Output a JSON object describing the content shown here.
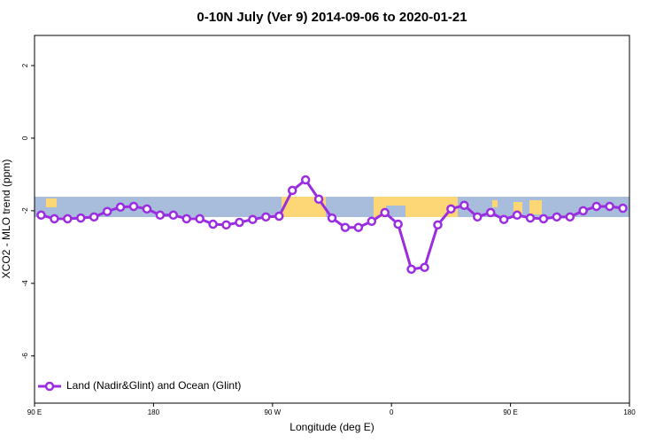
{
  "chart_data": {
    "type": "line",
    "title": "0-10N July (Ver 9)   2014-09-06 to 2020-01-21",
    "xlabel": "Longitude (deg E)",
    "ylabel": "XCO2 - MLO trend (ppm)",
    "x": [
      95,
      105,
      115,
      125,
      135,
      145,
      155,
      165,
      175,
      185,
      195,
      205,
      215,
      225,
      235,
      245,
      255,
      265,
      275,
      285,
      295,
      305,
      315,
      325,
      335,
      345,
      355,
      365,
      375,
      385,
      395,
      405,
      415,
      425,
      435,
      445,
      455,
      465,
      475,
      485,
      495,
      505,
      515,
      525,
      535
    ],
    "series": [
      {
        "name": "Land (Nadir&Glint) and Ocean (Glint)",
        "color": "#9b2de0",
        "values": [
          -2.12,
          -2.22,
          -2.22,
          -2.2,
          -2.17,
          -2.02,
          -1.9,
          -1.88,
          -1.95,
          -2.12,
          -2.12,
          -2.22,
          -2.22,
          -2.37,
          -2.39,
          -2.32,
          -2.24,
          -2.17,
          -2.15,
          -1.44,
          -1.15,
          -1.68,
          -2.2,
          -2.46,
          -2.46,
          -2.29,
          -2.05,
          -2.37,
          -3.61,
          -3.56,
          -2.39,
          -1.95,
          -1.85,
          -2.17,
          -2.05,
          -2.24,
          -2.12,
          -2.2,
          -2.22,
          -2.17,
          -2.17,
          -2.0,
          -1.88,
          -1.88,
          -1.93
        ]
      }
    ],
    "xlim": [
      90,
      540
    ],
    "xticks": [
      {
        "value": 90,
        "label": "90 E"
      },
      {
        "value": 180,
        "label": "180"
      },
      {
        "value": 270,
        "label": "90 W"
      },
      {
        "value": 360,
        "label": "0"
      },
      {
        "value": 450,
        "label": "90 E"
      },
      {
        "value": 540,
        "label": "180"
      }
    ],
    "ylim": [
      -7.3,
      2.83
    ],
    "yticks": [
      2,
      0,
      -2,
      -4,
      -6
    ],
    "legend": "bottom-left"
  }
}
